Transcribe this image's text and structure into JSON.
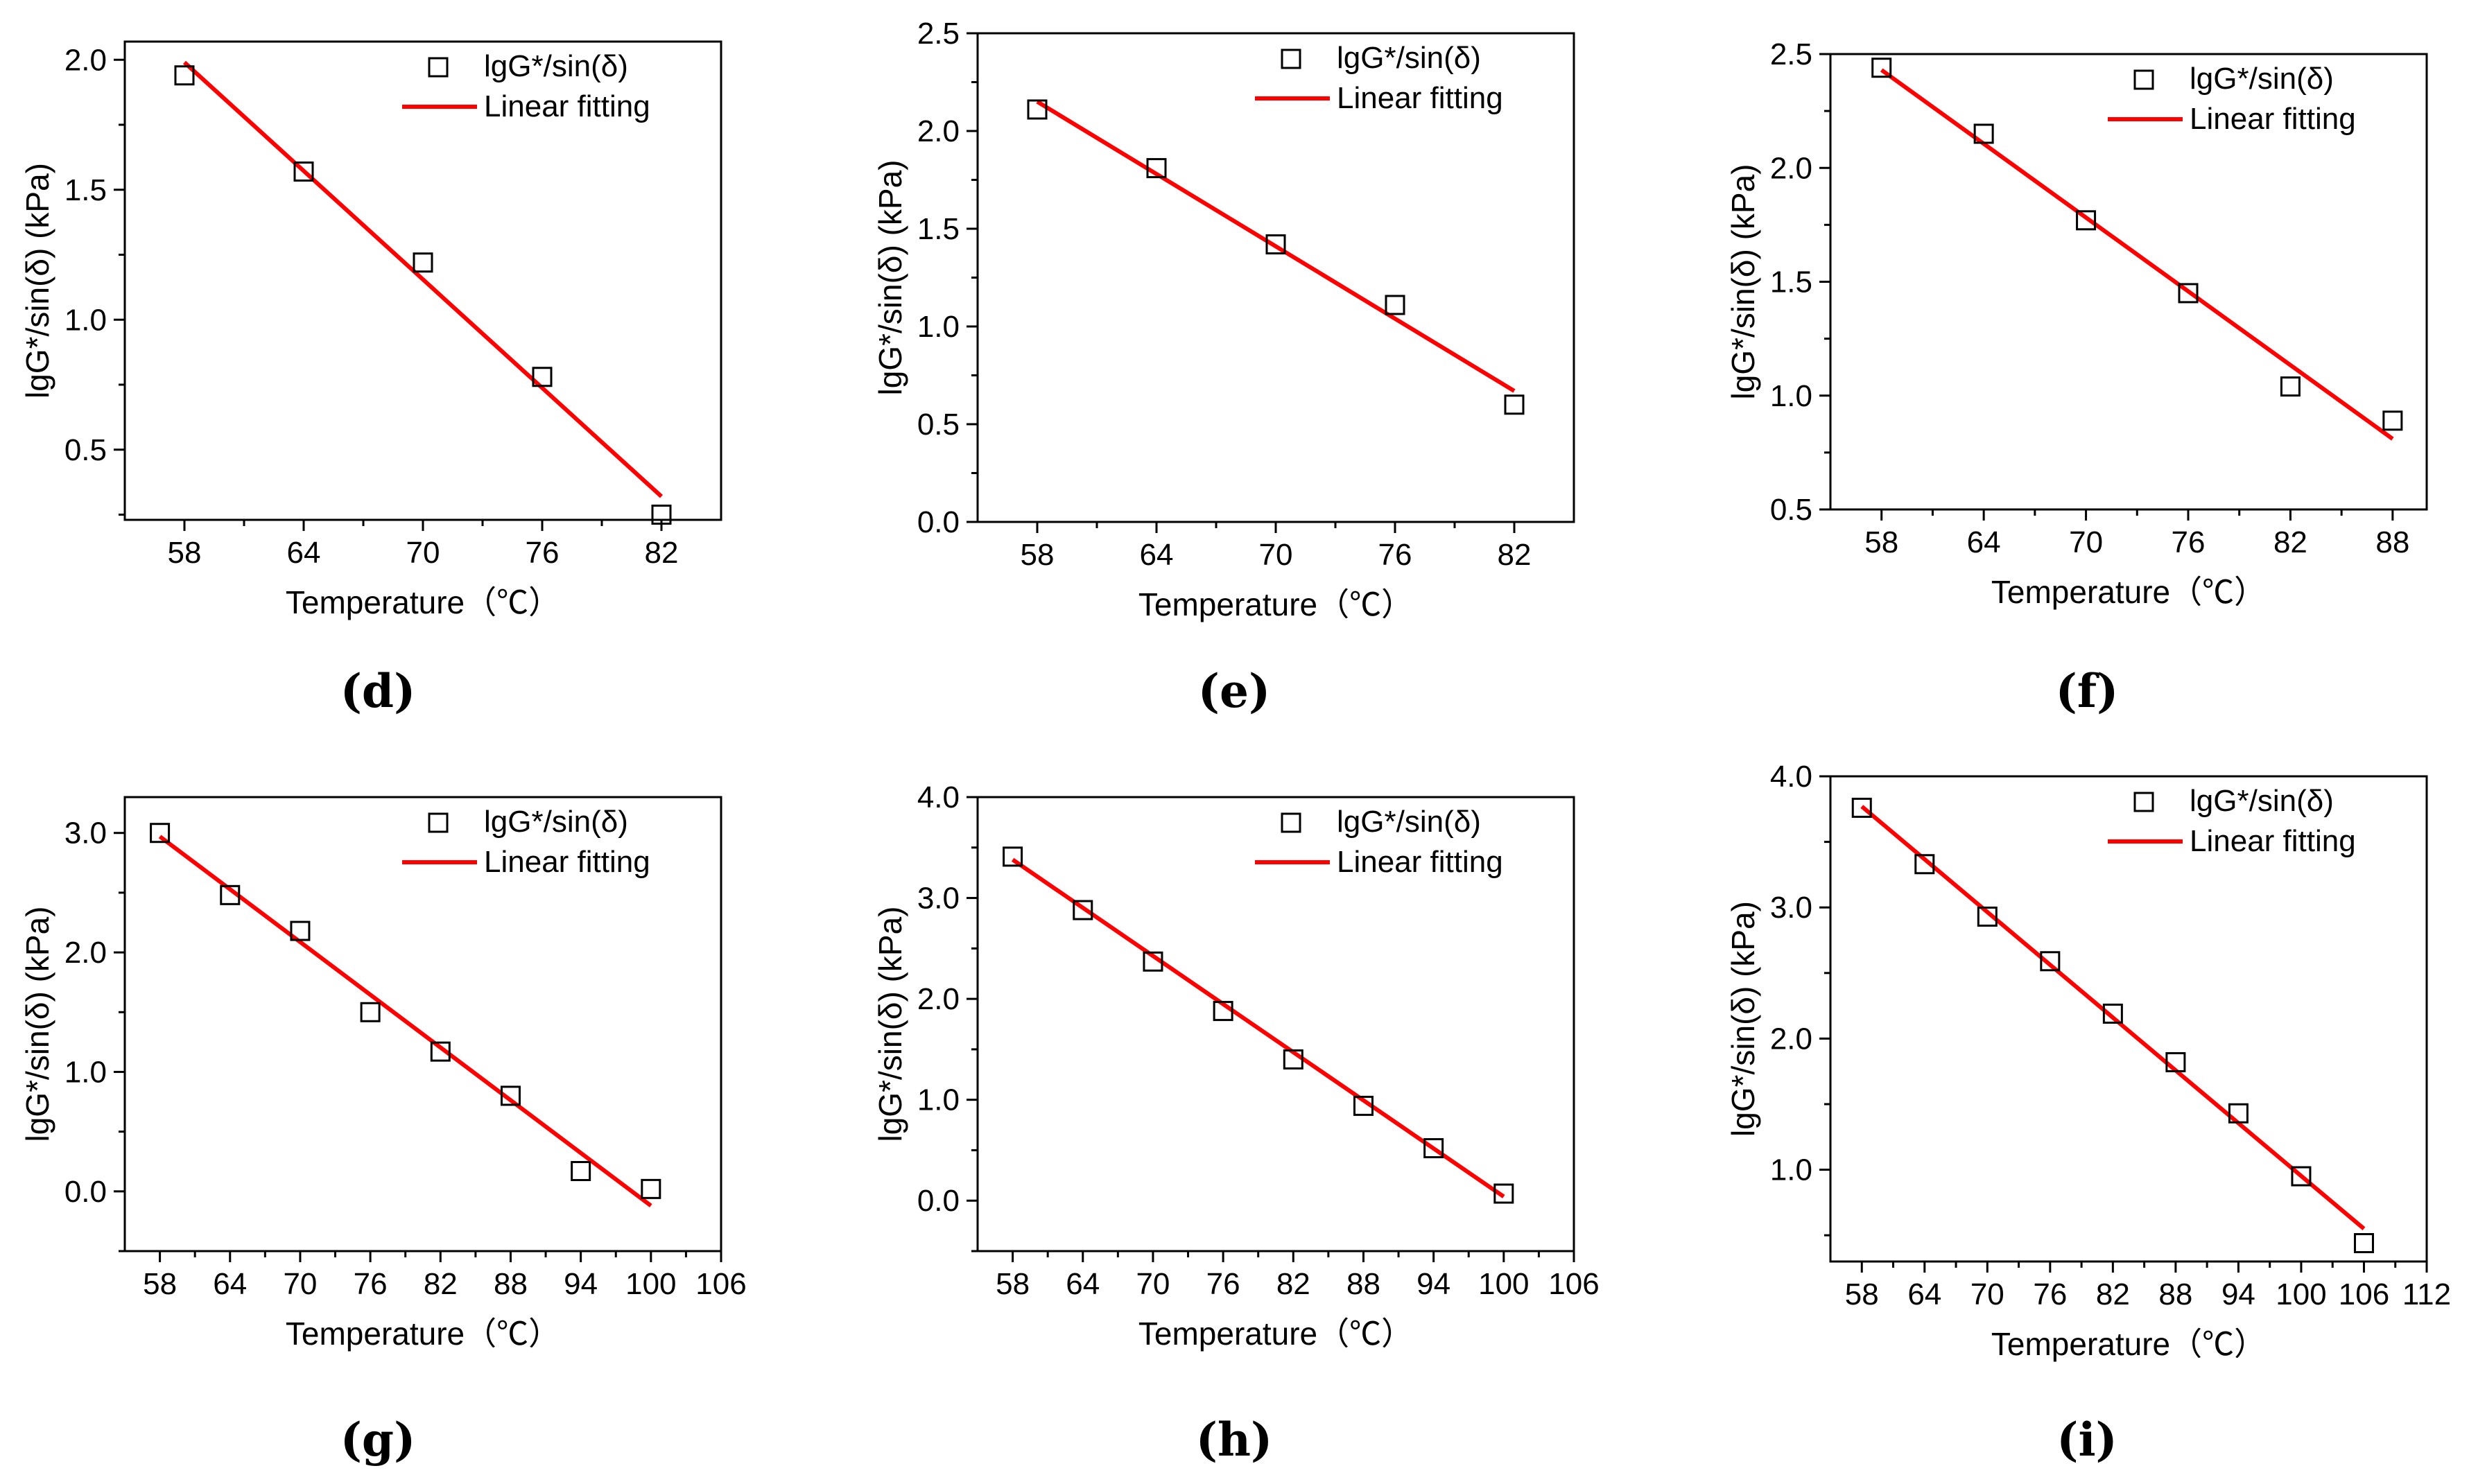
{
  "figure": {
    "panel_count": 6
  },
  "colors": {
    "marker": "#000000",
    "fit_line": "#ff0000",
    "axes": "#000000",
    "background": "#ffffff"
  },
  "chart_data": [
    {
      "panel_label": "(d)",
      "type": "scatter",
      "xlabel": "Temperature（℃）",
      "ylabel": "lgG*/sin(δ) (kPa)",
      "xlim": [
        55,
        85
      ],
      "ylim": [
        0.23,
        2.07
      ],
      "xticks": [
        58,
        64,
        70,
        76,
        82
      ],
      "yticks": [
        0.5,
        1.0,
        1.5,
        2.0
      ],
      "yticklabels": [
        "0.5",
        "1.0",
        "1.5",
        "2.0"
      ],
      "legend": {
        "position": "top-right",
        "entries": [
          "lgG*/sin(δ)",
          "Linear fitting"
        ]
      },
      "series": [
        {
          "name": "lgG*/sin(δ)",
          "kind": "marker",
          "x": [
            58,
            64,
            70,
            76,
            82
          ],
          "y": [
            1.94,
            1.57,
            1.22,
            0.78,
            0.25
          ]
        },
        {
          "name": "Linear fitting",
          "kind": "line",
          "x": [
            58,
            82
          ],
          "y": [
            1.99,
            0.32
          ]
        }
      ]
    },
    {
      "panel_label": "(e)",
      "type": "scatter",
      "xlabel": "Temperature（℃）",
      "ylabel": "lgG*/sin(δ) (kPa)",
      "xlim": [
        55,
        85
      ],
      "ylim": [
        0,
        2.5
      ],
      "xticks": [
        58,
        64,
        70,
        76,
        82
      ],
      "yticks": [
        0.0,
        0.5,
        1.0,
        1.5,
        2.0,
        2.5
      ],
      "yticklabels": [
        "0.0",
        "0.5",
        "1.0",
        "1.5",
        "2.0",
        "2.5"
      ],
      "legend": {
        "position": "top-right",
        "entries": [
          "lgG*/sin(δ)",
          "Linear fitting"
        ]
      },
      "series": [
        {
          "name": "lgG*/sin(δ)",
          "kind": "marker",
          "x": [
            58,
            64,
            70,
            76,
            82
          ],
          "y": [
            2.11,
            1.81,
            1.42,
            1.11,
            0.6
          ]
        },
        {
          "name": "Linear fitting",
          "kind": "line",
          "x": [
            58,
            82
          ],
          "y": [
            2.15,
            0.67
          ]
        }
      ]
    },
    {
      "panel_label": "(f)",
      "type": "scatter",
      "xlabel": "Temperature（℃）",
      "ylabel": "lgG*/sin(δ) (kPa)",
      "xlim": [
        55,
        90
      ],
      "ylim": [
        0.5,
        2.5
      ],
      "xticks": [
        58,
        64,
        70,
        76,
        82,
        88
      ],
      "yticks": [
        0.5,
        1.0,
        1.5,
        2.0,
        2.5
      ],
      "yticklabels": [
        "0.5",
        "1.0",
        "1.5",
        "2.0",
        "2.5"
      ],
      "legend": {
        "position": "top-right",
        "entries": [
          "lgG*/sin(δ)",
          "Linear fitting"
        ]
      },
      "series": [
        {
          "name": "lgG*/sin(δ)",
          "kind": "marker",
          "x": [
            58,
            64,
            70,
            76,
            82,
            88
          ],
          "y": [
            2.44,
            2.15,
            1.77,
            1.45,
            1.04,
            0.89
          ]
        },
        {
          "name": "Linear fitting",
          "kind": "line",
          "x": [
            58,
            88
          ],
          "y": [
            2.43,
            0.81
          ]
        }
      ]
    },
    {
      "panel_label": "(g)",
      "type": "scatter",
      "xlabel": "Temperature（℃）",
      "ylabel": "lgG*/sin(δ) (kPa)",
      "xlim": [
        55,
        106
      ],
      "ylim": [
        -0.5,
        3.3
      ],
      "xticks": [
        58,
        64,
        70,
        76,
        82,
        88,
        94,
        100,
        106
      ],
      "yticks": [
        0.0,
        1.0,
        2.0,
        3.0
      ],
      "yticklabels": [
        "0.0",
        "1.0",
        "2.0",
        "3.0"
      ],
      "legend": {
        "position": "top-right",
        "entries": [
          "lgG*/sin(δ)",
          "Linear fitting"
        ]
      },
      "series": [
        {
          "name": "lgG*/sin(δ)",
          "kind": "marker",
          "x": [
            58,
            64,
            70,
            76,
            82,
            88,
            94,
            100
          ],
          "y": [
            3.0,
            2.48,
            2.18,
            1.5,
            1.17,
            0.8,
            0.17,
            0.02
          ]
        },
        {
          "name": "Linear fitting",
          "kind": "line",
          "x": [
            58,
            100
          ],
          "y": [
            2.97,
            -0.12
          ]
        }
      ]
    },
    {
      "panel_label": "(h)",
      "type": "scatter",
      "xlabel": "Temperature（℃）",
      "ylabel": "lgG*/sin(δ) (kPa)",
      "xlim": [
        55,
        106
      ],
      "ylim": [
        -0.5,
        4.0
      ],
      "xticks": [
        58,
        64,
        70,
        76,
        82,
        88,
        94,
        100,
        106
      ],
      "yticks": [
        0.0,
        1.0,
        2.0,
        3.0,
        4.0
      ],
      "yticklabels": [
        "0.0",
        "1.0",
        "2.0",
        "3.0",
        "4.0"
      ],
      "legend": {
        "position": "top-right",
        "entries": [
          "lgG*/sin(δ)",
          "Linear fitting"
        ]
      },
      "series": [
        {
          "name": "lgG*/sin(δ)",
          "kind": "marker",
          "x": [
            58,
            64,
            70,
            76,
            82,
            88,
            94,
            100
          ],
          "y": [
            3.41,
            2.88,
            2.37,
            1.88,
            1.4,
            0.94,
            0.52,
            0.07
          ]
        },
        {
          "name": "Linear fitting",
          "kind": "line",
          "x": [
            58,
            100
          ],
          "y": [
            3.38,
            0.04
          ]
        }
      ]
    },
    {
      "panel_label": "(i)",
      "type": "scatter",
      "xlabel": "Temperature（℃）",
      "ylabel": "lgG*/sin(δ) (kPa)",
      "xlim": [
        55,
        112
      ],
      "ylim": [
        0.3,
        4.0
      ],
      "xticks": [
        58,
        64,
        70,
        76,
        82,
        88,
        94,
        100,
        106,
        112
      ],
      "yticks": [
        1.0,
        2.0,
        3.0,
        4.0
      ],
      "yticklabels": [
        "1.0",
        "2.0",
        "3.0",
        "4.0"
      ],
      "legend": {
        "position": "top-right",
        "entries": [
          "lgG*/sin(δ)",
          "Linear fitting"
        ]
      },
      "series": [
        {
          "name": "lgG*/sin(δ)",
          "kind": "marker",
          "x": [
            58,
            64,
            70,
            76,
            82,
            88,
            94,
            100,
            106
          ],
          "y": [
            3.76,
            3.33,
            2.93,
            2.59,
            2.19,
            1.82,
            1.43,
            0.95,
            0.44
          ]
        },
        {
          "name": "Linear fitting",
          "kind": "line",
          "x": [
            58,
            106
          ],
          "y": [
            3.77,
            0.55
          ]
        }
      ]
    }
  ]
}
